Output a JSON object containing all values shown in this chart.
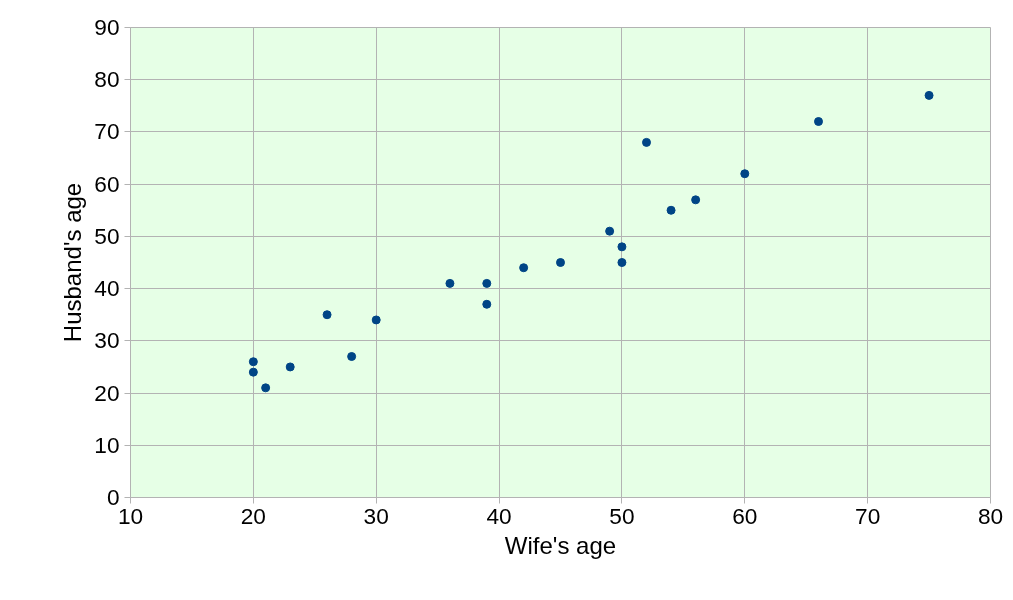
{
  "chart_data": {
    "type": "scatter",
    "xlabel": "Wife's age",
    "ylabel": "Husband's age",
    "x": [
      20,
      20,
      21,
      23,
      26,
      28,
      30,
      36,
      39,
      39,
      42,
      45,
      49,
      50,
      50,
      52,
      54,
      56,
      60,
      66,
      75
    ],
    "series": [
      {
        "color": "#004586",
        "values": [
          26,
          24,
          21,
          25,
          35,
          27,
          34,
          41,
          41,
          37,
          44,
          45,
          51,
          48,
          45,
          68,
          55,
          57,
          62,
          72,
          77
        ]
      }
    ],
    "xlim": [
      10,
      80
    ],
    "xticks": [
      10,
      20,
      30,
      40,
      50,
      60,
      70,
      80
    ],
    "ylim": [
      0,
      90
    ],
    "yticks": [
      0,
      10,
      20,
      30,
      40,
      50,
      60,
      70,
      80,
      90
    ],
    "grid": true,
    "marker": "circle"
  }
}
